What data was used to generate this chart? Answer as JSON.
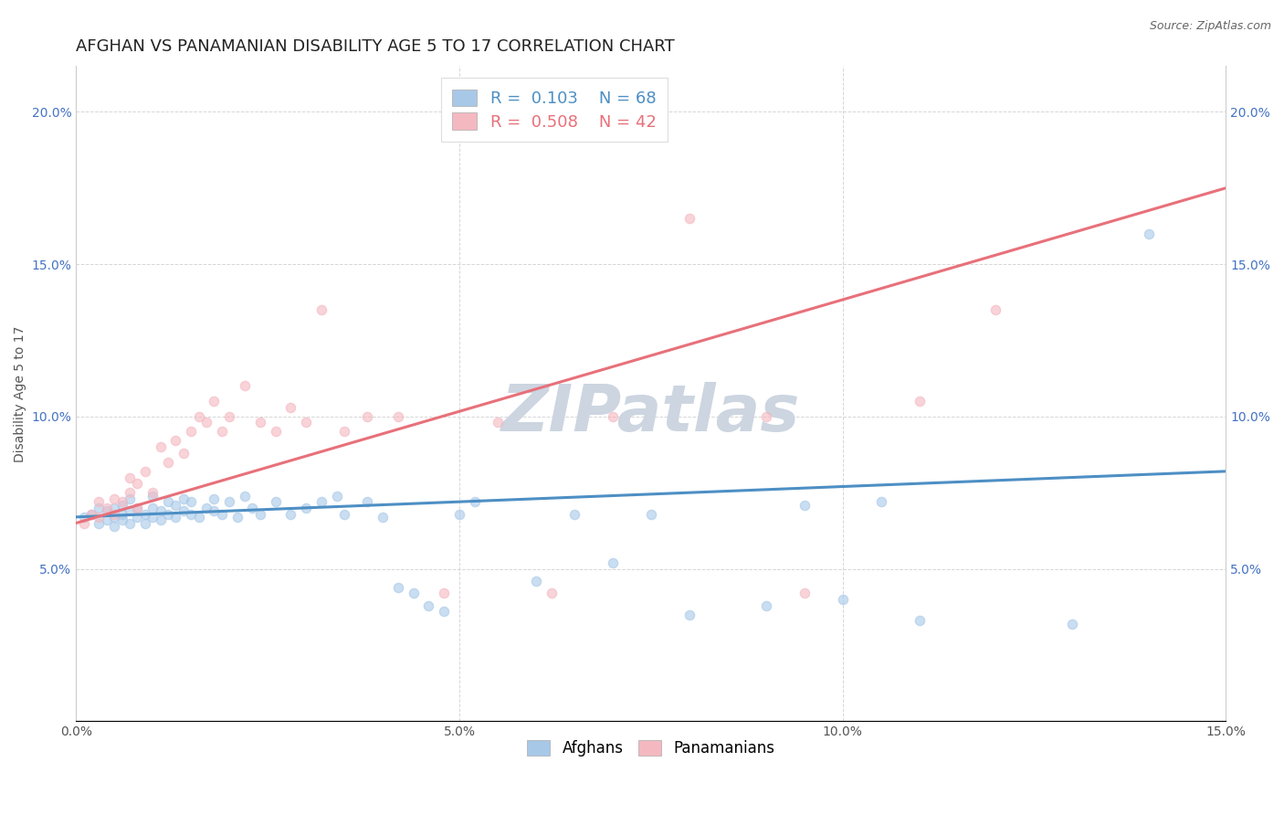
{
  "title": "AFGHAN VS PANAMANIAN DISABILITY AGE 5 TO 17 CORRELATION CHART",
  "source_text": "Source: ZipAtlas.com",
  "ylabel": "Disability Age 5 to 17",
  "xlim": [
    0.0,
    0.15
  ],
  "ylim": [
    0.0,
    0.215
  ],
  "xtick_labels": [
    "0.0%",
    "5.0%",
    "10.0%",
    "15.0%"
  ],
  "xtick_vals": [
    0.0,
    0.05,
    0.1,
    0.15
  ],
  "ytick_labels": [
    "5.0%",
    "10.0%",
    "15.0%",
    "20.0%"
  ],
  "ytick_vals": [
    0.05,
    0.1,
    0.15,
    0.2
  ],
  "afghan_color": "#a8c8e8",
  "panamanian_color": "#f4b8c0",
  "afghan_line_color": "#4d8fc4",
  "panamanian_line_color": "#e8707a",
  "afghan_R": 0.103,
  "afghan_N": 68,
  "panamanian_R": 0.508,
  "panamanian_N": 42,
  "watermark": "ZIPatlas",
  "watermark_color": "#ccd5e0",
  "title_fontsize": 13,
  "axis_label_fontsize": 10,
  "tick_fontsize": 10,
  "scatter_size": 55,
  "scatter_alpha": 0.6,
  "afghan_x": [
    0.001,
    0.002,
    0.003,
    0.003,
    0.004,
    0.004,
    0.005,
    0.005,
    0.005,
    0.006,
    0.006,
    0.006,
    0.007,
    0.007,
    0.007,
    0.008,
    0.008,
    0.009,
    0.009,
    0.01,
    0.01,
    0.01,
    0.011,
    0.011,
    0.012,
    0.012,
    0.013,
    0.013,
    0.014,
    0.014,
    0.015,
    0.015,
    0.016,
    0.017,
    0.018,
    0.018,
    0.019,
    0.02,
    0.021,
    0.022,
    0.023,
    0.024,
    0.026,
    0.028,
    0.03,
    0.032,
    0.034,
    0.035,
    0.038,
    0.04,
    0.042,
    0.044,
    0.046,
    0.048,
    0.05,
    0.052,
    0.06,
    0.065,
    0.07,
    0.075,
    0.08,
    0.09,
    0.095,
    0.1,
    0.105,
    0.11,
    0.13,
    0.14
  ],
  "afghan_y": [
    0.067,
    0.068,
    0.065,
    0.07,
    0.066,
    0.069,
    0.064,
    0.067,
    0.07,
    0.066,
    0.068,
    0.071,
    0.065,
    0.069,
    0.073,
    0.067,
    0.07,
    0.065,
    0.068,
    0.067,
    0.07,
    0.074,
    0.066,
    0.069,
    0.068,
    0.072,
    0.067,
    0.071,
    0.069,
    0.073,
    0.068,
    0.072,
    0.067,
    0.07,
    0.069,
    0.073,
    0.068,
    0.072,
    0.067,
    0.074,
    0.07,
    0.068,
    0.072,
    0.068,
    0.07,
    0.072,
    0.074,
    0.068,
    0.072,
    0.067,
    0.044,
    0.042,
    0.038,
    0.036,
    0.068,
    0.072,
    0.046,
    0.068,
    0.052,
    0.068,
    0.035,
    0.038,
    0.071,
    0.04,
    0.072,
    0.033,
    0.032,
    0.16
  ],
  "panamanian_x": [
    0.001,
    0.002,
    0.003,
    0.003,
    0.004,
    0.005,
    0.005,
    0.006,
    0.007,
    0.007,
    0.008,
    0.008,
    0.009,
    0.01,
    0.011,
    0.012,
    0.013,
    0.014,
    0.015,
    0.016,
    0.017,
    0.018,
    0.019,
    0.02,
    0.022,
    0.024,
    0.026,
    0.028,
    0.03,
    0.032,
    0.035,
    0.038,
    0.042,
    0.048,
    0.055,
    0.062,
    0.07,
    0.08,
    0.09,
    0.095,
    0.11,
    0.12
  ],
  "panamanian_y": [
    0.065,
    0.068,
    0.067,
    0.072,
    0.07,
    0.068,
    0.073,
    0.072,
    0.075,
    0.08,
    0.07,
    0.078,
    0.082,
    0.075,
    0.09,
    0.085,
    0.092,
    0.088,
    0.095,
    0.1,
    0.098,
    0.105,
    0.095,
    0.1,
    0.11,
    0.098,
    0.095,
    0.103,
    0.098,
    0.135,
    0.095,
    0.1,
    0.1,
    0.042,
    0.098,
    0.042,
    0.1,
    0.165,
    0.1,
    0.042,
    0.105,
    0.135
  ]
}
